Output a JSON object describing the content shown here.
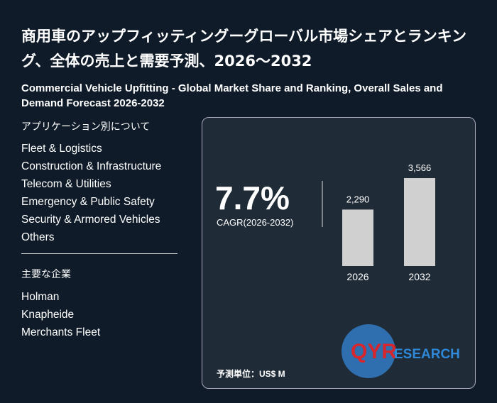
{
  "header": {
    "title": "商用車のアップフィッティングーグローバル市場シェアとランキング、全体の売上と需要予測、2026～2032",
    "subtitle": "Commercial Vehicle Upfitting - Global Market Share and Ranking, Overall Sales and Demand Forecast 2026-2032"
  },
  "sidebar": {
    "applications_heading": "アプリケーション別について",
    "applications": [
      "Fleet & Logistics",
      "Construction & Infrastructure",
      "Telecom & Utilities",
      "Emergency & Public Safety",
      "Security & Armored Vehicles",
      "Others"
    ],
    "companies_heading": "主要な企業",
    "companies": [
      "Holman",
      "Knapheide",
      "Merchants Fleet"
    ]
  },
  "panel": {
    "cagr": "7.7%",
    "cagr_label": "CAGR(2026-2032)",
    "unit": "予測単位：US$ M",
    "logo": [
      "QYR",
      "ESEARCH"
    ]
  },
  "chart_data": {
    "type": "bar",
    "categories": [
      "2026",
      "2032"
    ],
    "values": [
      2290,
      3566
    ],
    "value_labels": [
      "2,290",
      "3,566"
    ],
    "color": "#d0d0d0"
  }
}
